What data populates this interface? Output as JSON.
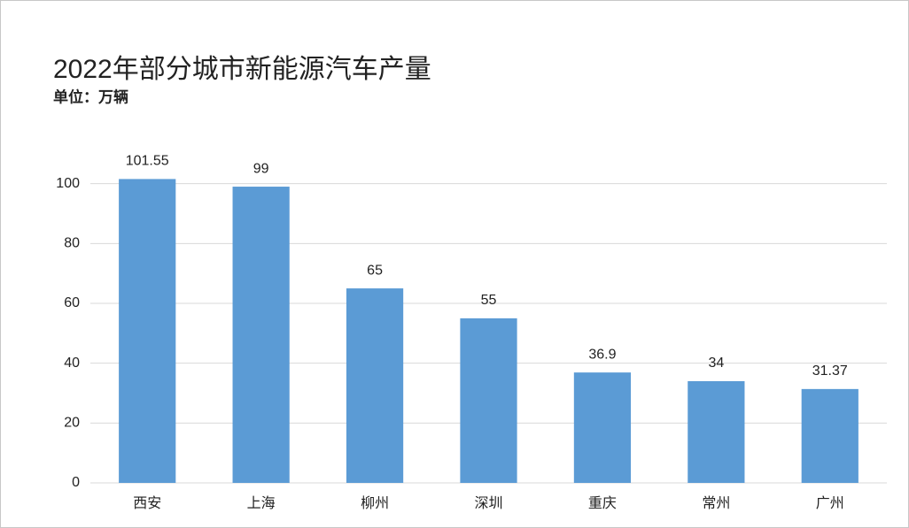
{
  "chart_data": {
    "type": "bar",
    "title": "2022年部分城市新能源汽车产量",
    "subtitle": "单位：万辆",
    "categories": [
      "西安",
      "上海",
      "柳州",
      "深圳",
      "重庆",
      "常州",
      "广州"
    ],
    "values": [
      101.55,
      99,
      65,
      55,
      36.9,
      34,
      31.37
    ],
    "color": "#5b9bd5",
    "ylim": [
      0,
      120
    ],
    "yticks": [
      0,
      20,
      40,
      60,
      80,
      100
    ],
    "grid": true
  }
}
